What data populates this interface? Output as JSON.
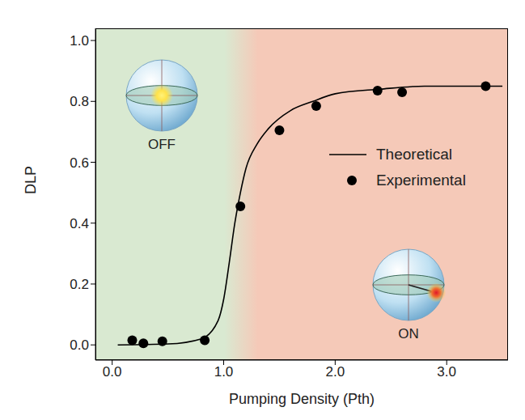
{
  "chart_data": {
    "type": "scatter",
    "x_label": "Pumping Density (Pth)",
    "y_label": "DLP",
    "xlim": [
      -0.15,
      3.55
    ],
    "ylim": [
      -0.05,
      1.04
    ],
    "xticks": [
      {
        "value": 0,
        "label": "0.0"
      },
      {
        "value": 1,
        "label": "1.0"
      },
      {
        "value": 2,
        "label": "2.0"
      },
      {
        "value": 3,
        "label": "3.0"
      }
    ],
    "yticks": [
      {
        "value": 0,
        "label": "0.0"
      },
      {
        "value": 0.2,
        "label": "0.2"
      },
      {
        "value": 0.4,
        "label": "0.4"
      },
      {
        "value": 0.6,
        "label": "0.6"
      },
      {
        "value": 0.8,
        "label": "0.8"
      },
      {
        "value": 1,
        "label": "1.0"
      }
    ],
    "legend": "right",
    "annotations": [
      {
        "text": "OFF"
      },
      {
        "text": "ON"
      }
    ],
    "series": [
      {
        "name": "Theoretical",
        "type": "line",
        "color": "#000000",
        "line_style": "solid",
        "x": [
          0.05,
          0.5,
          0.8,
          0.95,
          1.0,
          1.05,
          1.1,
          1.15,
          1.2,
          1.3,
          1.4,
          1.6,
          1.8,
          2.0,
          2.4,
          2.8,
          3.2,
          3.5
        ],
        "values": [
          0.0,
          0.003,
          0.02,
          0.08,
          0.15,
          0.27,
          0.4,
          0.5,
          0.58,
          0.66,
          0.71,
          0.77,
          0.8,
          0.825,
          0.84,
          0.85,
          0.85,
          0.85
        ]
      },
      {
        "name": "Experimental",
        "type": "scatter",
        "color": "#000000",
        "marker": "circle",
        "x": [
          0.18,
          0.28,
          0.45,
          0.83,
          1.15,
          1.5,
          1.83,
          2.38,
          2.6,
          3.35
        ],
        "values": [
          0.015,
          0.005,
          0.012,
          0.015,
          0.455,
          0.705,
          0.785,
          0.835,
          0.83,
          0.85
        ]
      }
    ]
  }
}
